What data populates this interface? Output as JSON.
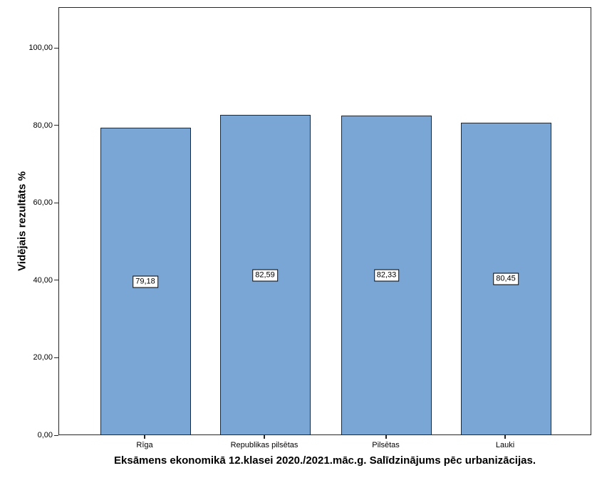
{
  "chart_data": {
    "type": "bar",
    "title": "Eksāmens ekonomikā 12.klasei 2020./2021.māc.g. Salīdzinājums pēc urbanizācijas.",
    "ylabel": "Vidējais rezultāts %",
    "xlabel": "",
    "categories": [
      "Rīga",
      "Republikas pilsētas",
      "Pilsētas",
      "Lauki"
    ],
    "values": [
      79.18,
      82.59,
      82.33,
      80.45
    ],
    "value_labels": [
      "79,18",
      "82,59",
      "82,33",
      "80,45"
    ],
    "yticks": [
      0,
      20,
      40,
      60,
      80,
      100
    ],
    "ytick_labels": [
      "0,00",
      "20,00",
      "40,00",
      "60,00",
      "80,00",
      "100,00"
    ],
    "ylim": [
      0,
      110.5
    ],
    "grid": false,
    "legend": null,
    "bar_color": "#7AA6D6",
    "bar_border_color": "#1f2833",
    "frame_color": "#262626"
  }
}
